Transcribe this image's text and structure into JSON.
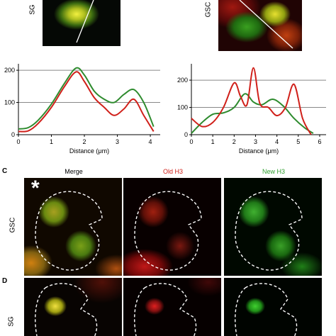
{
  "top_images": {
    "left_label": "SG",
    "right_label": "GSC"
  },
  "chart_data": [
    {
      "type": "line",
      "xlabel": "Distance (μm)",
      "ylabel": "",
      "xlim": [
        0,
        4.3
      ],
      "ylim": [
        0,
        220
      ],
      "xticks": [
        "0",
        "1",
        "2",
        "3",
        "4"
      ],
      "yticks": [
        "0",
        "100",
        "200"
      ],
      "gridlines_y": [
        100,
        200
      ],
      "series": [
        {
          "color": "#2e8b2e",
          "x": [
            0,
            0.3,
            0.6,
            1.0,
            1.4,
            1.75,
            2.0,
            2.3,
            2.6,
            2.9,
            3.2,
            3.5,
            3.8,
            4.1
          ],
          "values": [
            18,
            22,
            45,
            95,
            160,
            207,
            185,
            135,
            110,
            100,
            125,
            140,
            100,
            25
          ]
        },
        {
          "color": "#d0201a",
          "x": [
            0,
            0.3,
            0.6,
            1.0,
            1.4,
            1.75,
            2.0,
            2.3,
            2.6,
            2.9,
            3.2,
            3.5,
            3.8,
            4.1
          ],
          "values": [
            10,
            12,
            35,
            85,
            150,
            195,
            165,
            115,
            85,
            60,
            80,
            110,
            60,
            10
          ]
        }
      ]
    },
    {
      "type": "line",
      "xlabel": "Distance (μm)",
      "ylabel": "",
      "xlim": [
        0,
        6.3
      ],
      "ylim": [
        0,
        260
      ],
      "xticks": [
        "0",
        "1",
        "2",
        "3",
        "4",
        "5",
        "6"
      ],
      "yticks": [
        "0",
        "100",
        "200"
      ],
      "gridlines_y": [
        100,
        200
      ],
      "series": [
        {
          "color": "#2e8b2e",
          "x": [
            0,
            0.5,
            1.0,
            1.5,
            2.0,
            2.5,
            2.9,
            3.3,
            3.8,
            4.3,
            4.8,
            5.3,
            5.7
          ],
          "values": [
            5,
            45,
            75,
            80,
            100,
            150,
            120,
            110,
            130,
            105,
            60,
            25,
            5
          ]
        },
        {
          "color": "#d0201a",
          "x": [
            0,
            0.5,
            1.0,
            1.5,
            2.0,
            2.3,
            2.6,
            2.9,
            3.2,
            3.6,
            4.0,
            4.4,
            4.8,
            5.2,
            5.6
          ],
          "values": [
            60,
            30,
            45,
            100,
            190,
            140,
            110,
            245,
            115,
            100,
            70,
            100,
            185,
            60,
            0
          ]
        }
      ]
    }
  ],
  "panels": {
    "C": {
      "letter": "C",
      "row_label": "GSC",
      "asterisk": "*"
    },
    "D": {
      "letter": "D",
      "row_label": "SG"
    },
    "columns": [
      "Merge",
      "Old H3",
      "New H3"
    ]
  }
}
